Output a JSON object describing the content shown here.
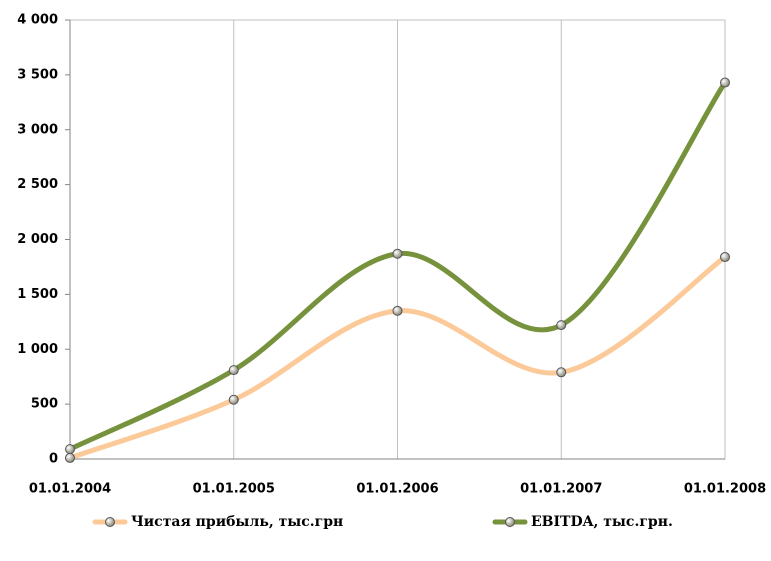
{
  "chart_data": {
    "type": "line",
    "categories": [
      "01.01.2004",
      "01.01.2005",
      "01.01.2006",
      "01.01.2007",
      "01.01.2008"
    ],
    "series": [
      {
        "name": "Чистая прибыль, тыс.грн",
        "color": "#fcc998",
        "values": [
          10,
          540,
          1350,
          790,
          1840
        ]
      },
      {
        "name": "EBITDA, тыс.грн.",
        "color": "#76923c",
        "values": [
          90,
          810,
          1870,
          1220,
          3430
        ]
      }
    ],
    "ylim": [
      0,
      4000
    ],
    "yticks": [
      0,
      500,
      {
        "value": 1000,
        "label": "1 000"
      },
      {
        "value": 1500,
        "label": "1 500"
      },
      {
        "value": 2000,
        "label": "2 000"
      },
      {
        "value": 2500,
        "label": "2 500"
      },
      {
        "value": 3000,
        "label": "3 000"
      },
      {
        "value": 3500,
        "label": "3 500"
      },
      {
        "value": 4000,
        "label": "4 000"
      }
    ],
    "smooth": true,
    "legend": "bottom"
  }
}
